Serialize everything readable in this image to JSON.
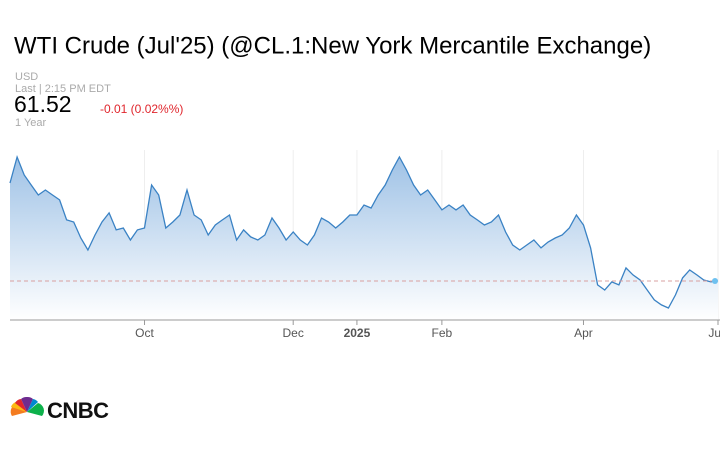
{
  "chart_data": {
    "type": "area",
    "title": "WTI Crude (Jul'25) (@CL.1:New York Mercantile Exchange)",
    "currency": "USD",
    "last_label": "Last | 2:15 PM EDT",
    "last_price": 61.52,
    "change": "-0.01 (0.02%%)",
    "range": "1 Year",
    "brand": "CNBC",
    "color": "#3a82c4",
    "ylim": [
      57.5,
      75
    ],
    "categories": [
      null,
      null,
      null,
      null,
      null,
      null,
      null,
      null,
      null,
      null,
      null,
      null,
      null,
      null,
      null,
      null,
      null,
      null,
      null,
      "Oct",
      null,
      null,
      null,
      null,
      null,
      null,
      null,
      null,
      null,
      null,
      null,
      null,
      null,
      null,
      null,
      null,
      null,
      null,
      null,
      null,
      "Dec",
      null,
      null,
      null,
      null,
      null,
      null,
      null,
      null,
      "2025",
      null,
      null,
      null,
      null,
      null,
      null,
      null,
      null,
      null,
      null,
      null,
      "Feb",
      null,
      null,
      null,
      null,
      null,
      null,
      null,
      null,
      null,
      null,
      null,
      null,
      null,
      null,
      null,
      null,
      null,
      null,
      null,
      "Apr",
      null,
      null,
      null,
      null,
      null,
      null,
      null,
      null,
      null,
      null,
      null,
      null,
      null,
      null,
      null,
      null,
      null,
      null,
      "Jun"
    ],
    "values": [
      71.6,
      74.28,
      72.43,
      71.4,
      70.37,
      70.88,
      70.37,
      69.86,
      67.8,
      67.59,
      65.94,
      64.71,
      66.25,
      67.59,
      68.52,
      66.77,
      66.97,
      65.74,
      66.77,
      66.97,
      71.4,
      70.37,
      66.97,
      67.59,
      68.31,
      70.88,
      68.31,
      67.8,
      66.25,
      67.28,
      67.8,
      68.31,
      65.74,
      66.77,
      66.05,
      65.74,
      66.25,
      68.0,
      66.97,
      65.74,
      66.56,
      65.74,
      65.22,
      66.25,
      68.0,
      67.59,
      66.97,
      67.59,
      68.31,
      68.31,
      69.34,
      69.03,
      70.37,
      71.4,
      72.94,
      74.28,
      72.94,
      71.4,
      70.37,
      70.88,
      69.86,
      68.83,
      69.34,
      68.83,
      69.34,
      68.31,
      67.8,
      67.28,
      67.59,
      68.31,
      66.56,
      65.22,
      64.71,
      65.22,
      65.74,
      64.92,
      65.53,
      65.94,
      66.25,
      66.97,
      68.31,
      67.28,
      64.92,
      61.11,
      60.59,
      61.42,
      61.11,
      62.86,
      62.14,
      61.62,
      60.59,
      59.57,
      59.05,
      58.74,
      60.08,
      61.83,
      62.65,
      62.14,
      61.62,
      61.42,
      61.52
    ]
  }
}
